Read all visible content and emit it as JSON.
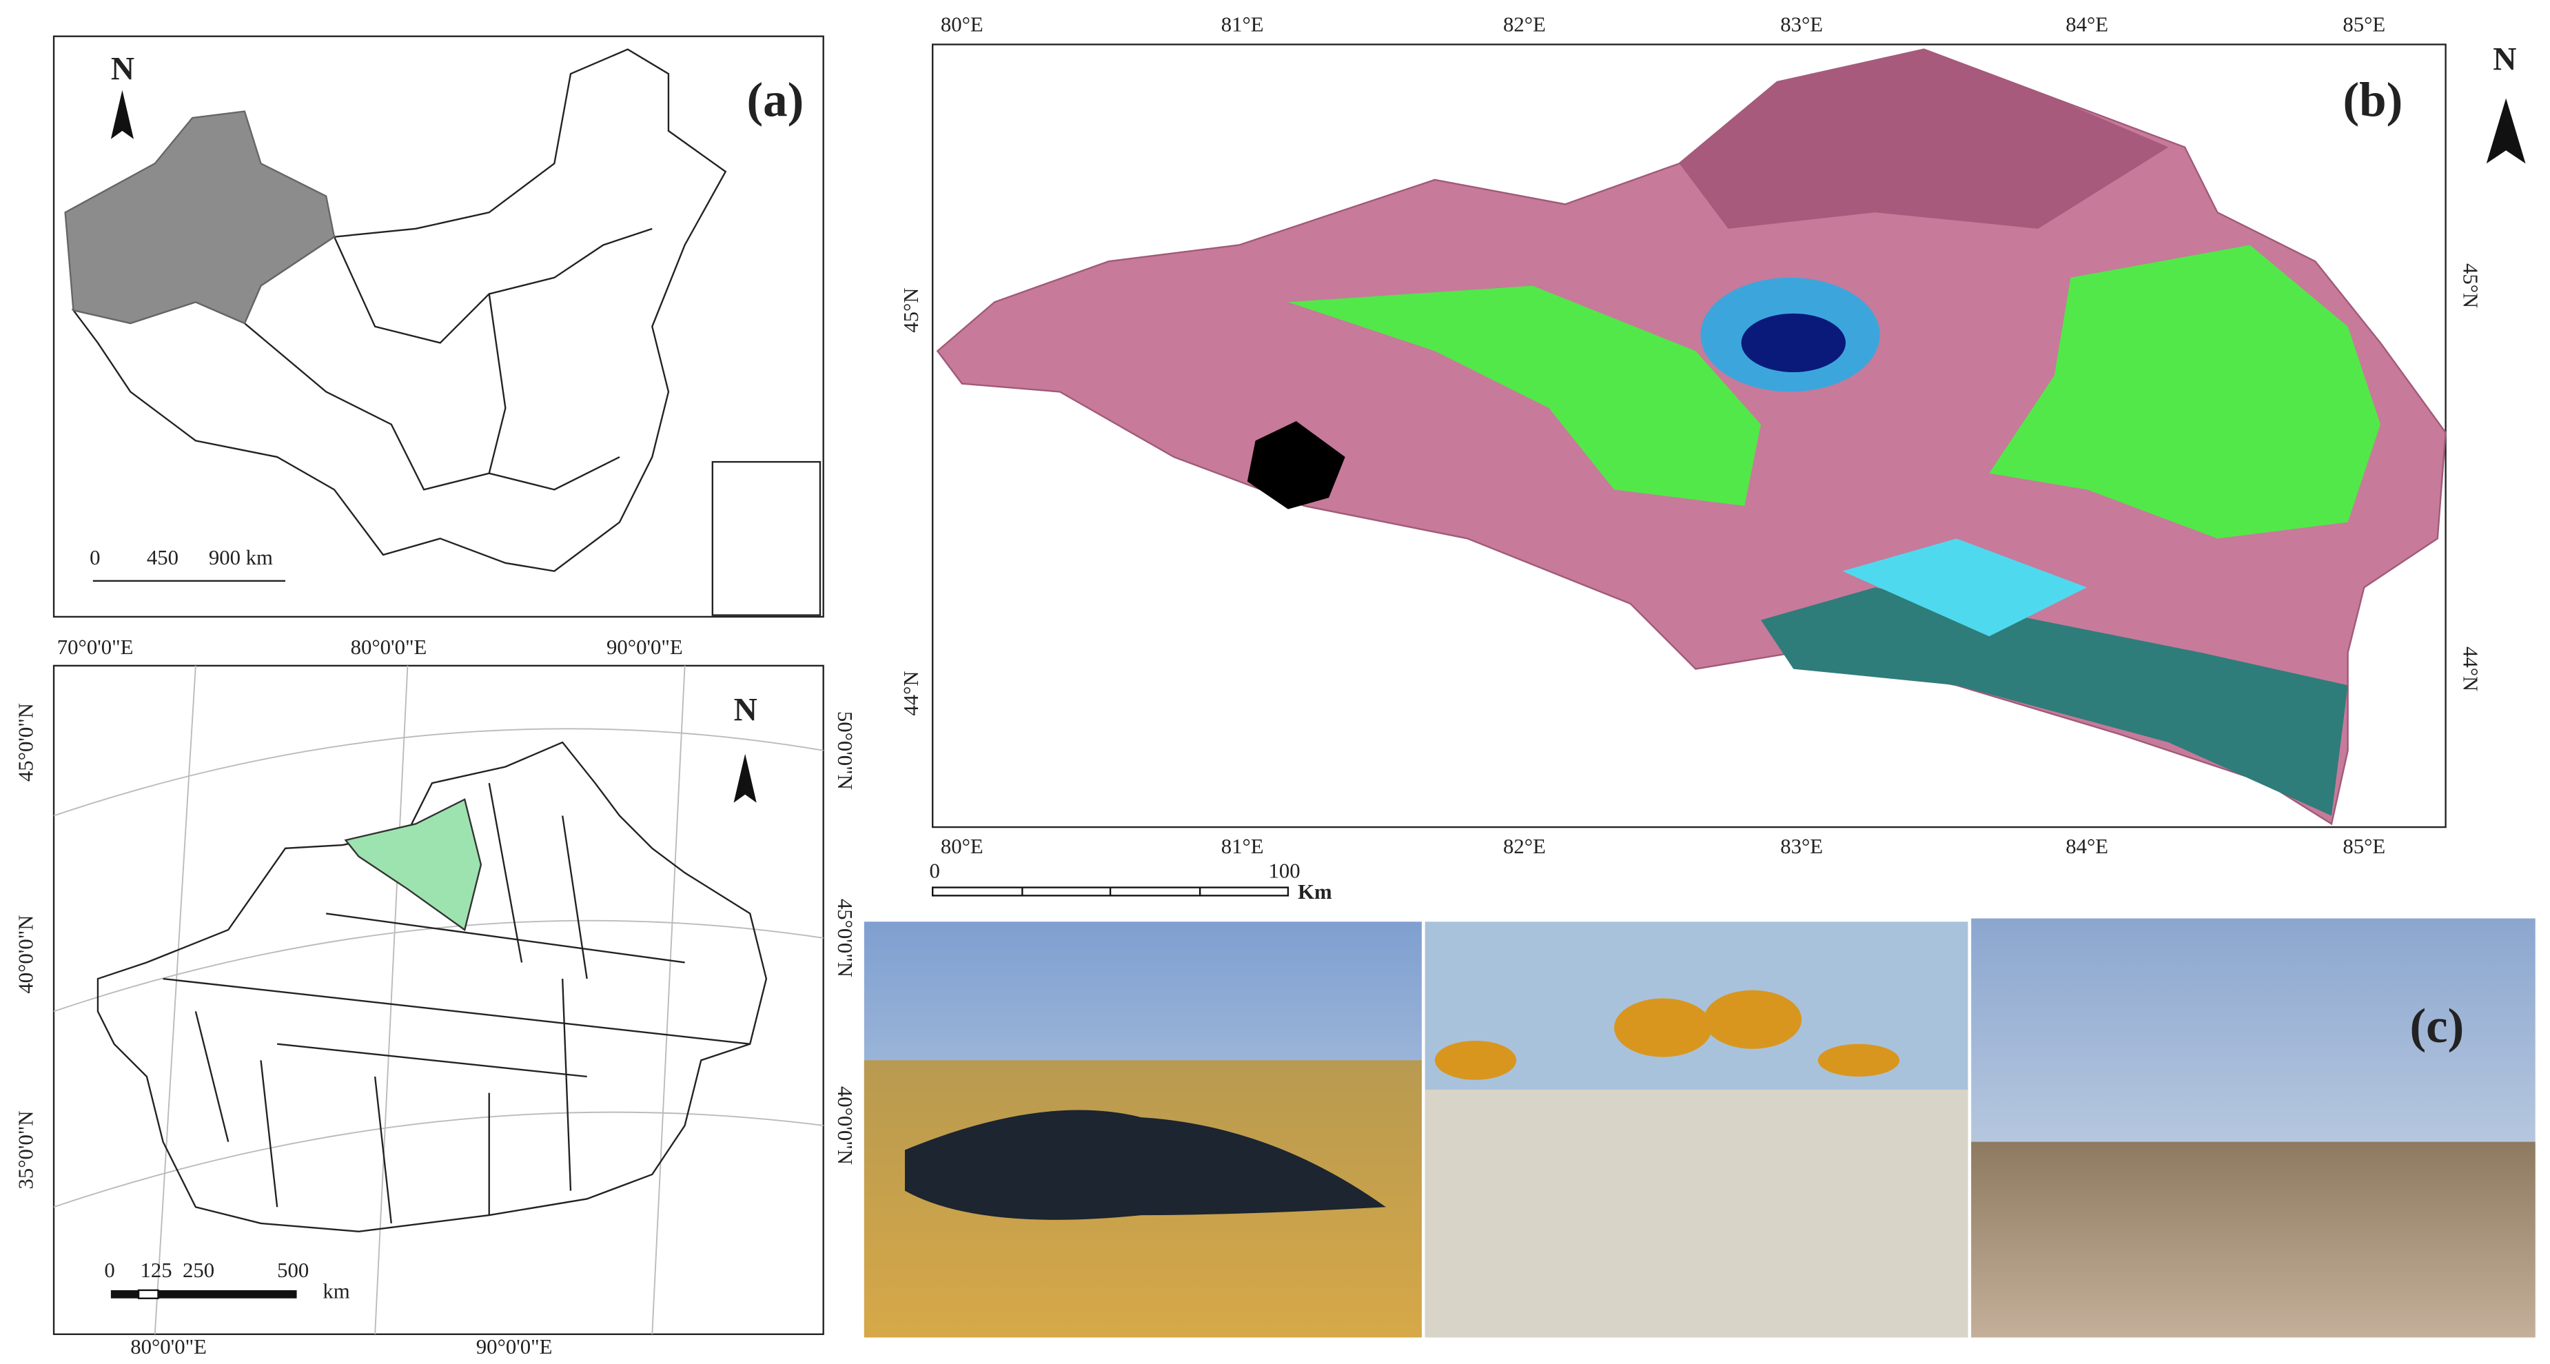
{
  "panel_a": {
    "label": "(a)",
    "north": "N",
    "scale": [
      "0",
      "450",
      "900 km"
    ],
    "lower": {
      "north": "N",
      "top_ticks": [
        "70°0'0\"E",
        "80°0'0\"E",
        "90°0'0\"E"
      ],
      "bottom_ticks": [
        "80°0'0\"E",
        "90°0'0\"E"
      ],
      "left_ticks": [
        "45°0'0\"N",
        "40°0'0\"N",
        "35°0'0\"N"
      ],
      "right_ticks": [
        "50°0'0\"N",
        "45°0'0\"N",
        "40°0'0\"N"
      ],
      "scale": [
        "0",
        "125",
        "250",
        "500"
      ],
      "scale_unit": "km"
    }
  },
  "panel_b": {
    "label": "(b)",
    "north": "N",
    "top_ticks": [
      "80°E",
      "81°E",
      "82°E",
      "83°E",
      "84°E",
      "85°E"
    ],
    "bottom_ticks": [
      "80°E",
      "81°E",
      "82°E",
      "83°E",
      "84°E",
      "85°E"
    ],
    "left_ticks": [
      "45°N",
      "44°N"
    ],
    "right_ticks": [
      "45°N",
      "44°N"
    ],
    "scale": [
      "0",
      "100"
    ],
    "scale_unit": "Km"
  },
  "panel_c": {
    "label": "(c)"
  }
}
